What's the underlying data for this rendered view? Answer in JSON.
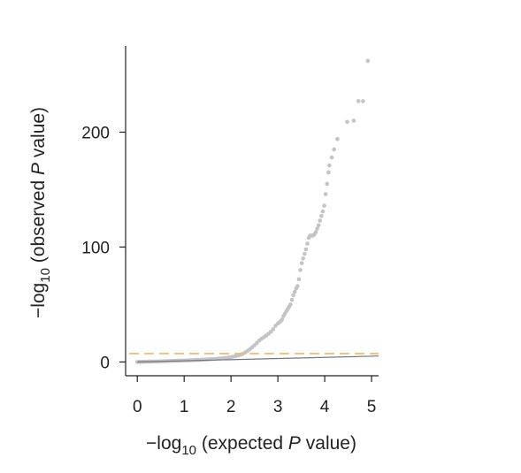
{
  "chart_data": {
    "type": "scatter",
    "title": "",
    "xlabel": {
      "prefix": "−log",
      "sub": "10",
      "middle": " (expected ",
      "italic": "P",
      "suffix": " value)"
    },
    "ylabel": {
      "prefix": "−log",
      "sub": "10",
      "middle": " (observed ",
      "italic": "P",
      "suffix": " value)"
    },
    "xlim": [
      -0.25,
      5.15
    ],
    "ylim": [
      -12,
      275
    ],
    "xticks": [
      0,
      1,
      2,
      3,
      4,
      5
    ],
    "xtick_labels": [
      "0",
      "1",
      "2",
      "3",
      "4",
      "5"
    ],
    "yticks": [
      0,
      100,
      200
    ],
    "ytick_labels": [
      "0",
      "100",
      "200"
    ],
    "grid": false,
    "significance_threshold": {
      "y": 7.3,
      "color": "#f0b960",
      "style": "dashed"
    },
    "expected_line": {
      "x": [
        0,
        5.15
      ],
      "y": [
        0,
        5.15
      ],
      "color": "#777777"
    },
    "points_color": "#c4c4c8",
    "series": [
      {
        "x": [
          0.0,
          0.05,
          0.1,
          0.15,
          0.2,
          0.25,
          0.3,
          0.35,
          0.4,
          0.45,
          0.5,
          0.55,
          0.6,
          0.65,
          0.7,
          0.75,
          0.8,
          0.85,
          0.9,
          0.95,
          1.0,
          1.05,
          1.1,
          1.15,
          1.2,
          1.25,
          1.3,
          1.35,
          1.4,
          1.45,
          1.5,
          1.55,
          1.6,
          1.65,
          1.7,
          1.75,
          1.8,
          1.85,
          1.9,
          1.95,
          2.0,
          2.05,
          2.1,
          2.15,
          2.2,
          2.25,
          2.3,
          2.35,
          2.4,
          2.45,
          2.5,
          2.55,
          2.6,
          2.65,
          2.7,
          2.75,
          2.8,
          2.85,
          2.9,
          2.95,
          3.0,
          3.03,
          3.06,
          3.09,
          3.12,
          3.15,
          3.18,
          3.21,
          3.24,
          3.27,
          3.3,
          3.33,
          3.36,
          3.39,
          3.42,
          3.45,
          3.48,
          3.51,
          3.54,
          3.57,
          3.6,
          3.63,
          3.66,
          3.69,
          3.72,
          3.75,
          3.78,
          3.81,
          3.84,
          3.87,
          3.9,
          3.93,
          3.96,
          3.99,
          4.02,
          4.05,
          4.08,
          4.1,
          4.15,
          4.2,
          4.27,
          4.48,
          4.62,
          4.72,
          4.82,
          4.92
        ],
        "y": [
          0.0,
          0.05,
          0.1,
          0.16,
          0.21,
          0.27,
          0.33,
          0.39,
          0.45,
          0.51,
          0.57,
          0.63,
          0.7,
          0.76,
          0.82,
          0.89,
          0.96,
          1.03,
          1.1,
          1.17,
          1.25,
          1.33,
          1.41,
          1.5,
          1.59,
          1.68,
          1.78,
          1.88,
          1.99,
          2.1,
          2.22,
          2.35,
          2.48,
          2.62,
          2.78,
          2.95,
          3.14,
          3.35,
          3.59,
          3.86,
          4.2,
          4.6,
          5.1,
          5.6,
          6.2,
          7.0,
          8.2,
          9.5,
          11.0,
          12.7,
          14.5,
          16.5,
          18.6,
          20.2,
          21.5,
          23.0,
          24.5,
          26.3,
          28.5,
          31.5,
          33.5,
          34.5,
          35.5,
          37.0,
          40.0,
          42.0,
          44.0,
          46.0,
          48.0,
          50.0,
          54.0,
          58.0,
          61.0,
          64.0,
          66.0,
          72.0,
          80.0,
          86.0,
          90.0,
          94.0,
          98.0,
          103.0,
          108.0,
          110.0,
          110.0,
          110.0,
          111.0,
          113.0,
          116.0,
          119.0,
          123.0,
          127.0,
          131.0,
          136.0,
          146.0,
          155.0,
          165.0,
          171.0,
          178.0,
          185.0,
          194.0,
          209.0,
          210.0,
          227.0,
          227.0,
          262.0
        ]
      }
    ]
  }
}
